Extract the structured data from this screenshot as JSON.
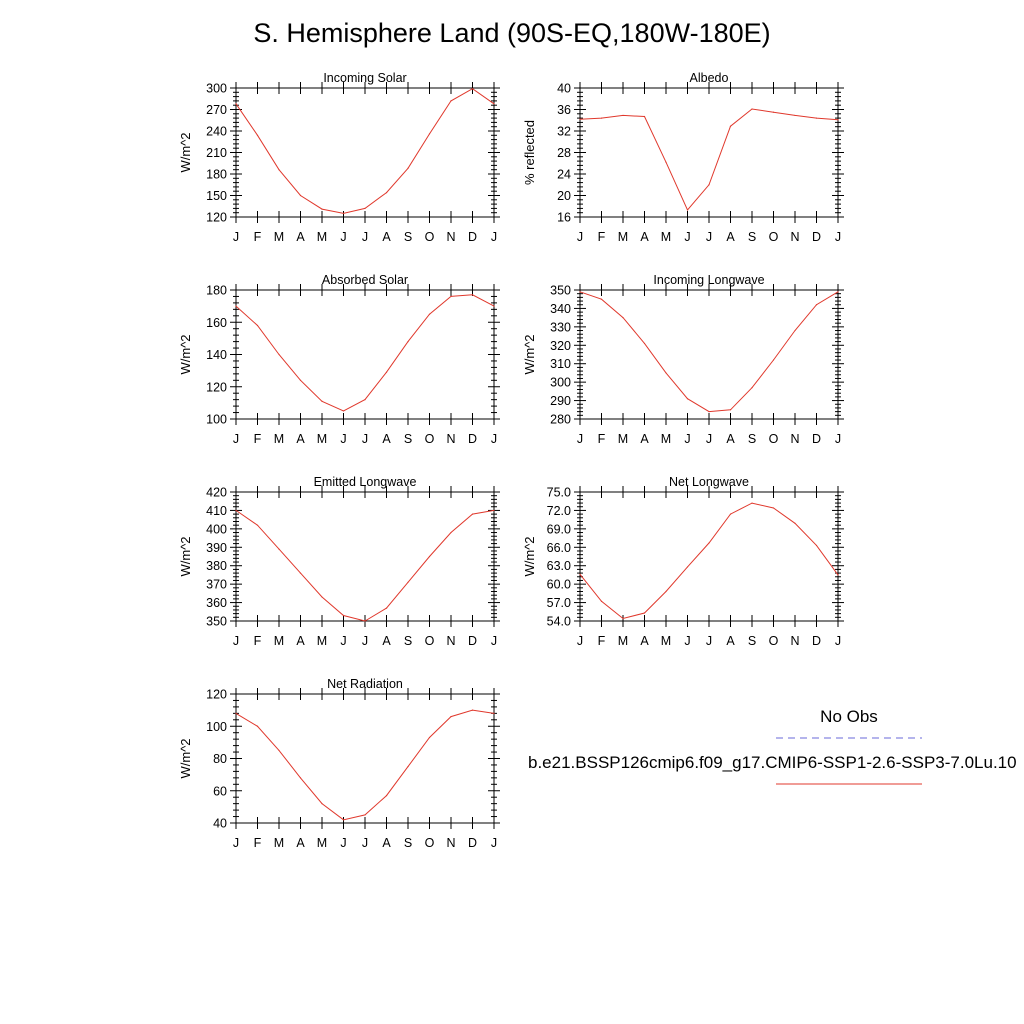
{
  "page": {
    "title": "S. Hemisphere Land (90S-EQ,180W-180E)"
  },
  "legend": {
    "obs_label": "No Obs",
    "case_label": "b.e21.BSSP126cmip6.f09_g17.CMIP6-SSP1-2.6-SSP3-7.0Lu.10",
    "obs_color": "#6a6ad8",
    "case_color": "#e0382c"
  },
  "months": [
    "J",
    "F",
    "M",
    "A",
    "M",
    "J",
    "J",
    "A",
    "S",
    "O",
    "N",
    "D",
    "J"
  ],
  "chart_data": [
    {
      "type": "line",
      "title": "Incoming Solar",
      "ylabel": "W/m^2",
      "ylim": [
        120,
        300
      ],
      "yticks": [
        120,
        150,
        180,
        210,
        240,
        270,
        300
      ],
      "ytick_labels": [
        "120",
        "150",
        "180",
        "210",
        "240",
        "270",
        "300"
      ],
      "categories": [
        "J",
        "F",
        "M",
        "A",
        "M",
        "J",
        "J",
        "A",
        "S",
        "O",
        "N",
        "D",
        "J"
      ],
      "series": [
        {
          "values": [
            278,
            234,
            186,
            150,
            131,
            125,
            132,
            154,
            188,
            236,
            282,
            299,
            278
          ],
          "color": "#e0382c"
        }
      ]
    },
    {
      "type": "line",
      "title": "Albedo",
      "ylabel": "% reflected",
      "ylim": [
        16,
        40
      ],
      "yticks": [
        16,
        20,
        24,
        28,
        32,
        36,
        40
      ],
      "ytick_labels": [
        "16",
        "20",
        "24",
        "28",
        "32",
        "36",
        "40"
      ],
      "categories": [
        "J",
        "F",
        "M",
        "A",
        "M",
        "J",
        "J",
        "A",
        "S",
        "O",
        "N",
        "D",
        "J"
      ],
      "series": [
        {
          "values": [
            34.2,
            34.4,
            34.9,
            34.7,
            26.2,
            17.3,
            22.0,
            32.9,
            36.1,
            35.5,
            34.9,
            34.4,
            34.1
          ],
          "color": "#e0382c"
        }
      ]
    },
    {
      "type": "line",
      "title": "Absorbed Solar",
      "ylabel": "W/m^2",
      "ylim": [
        100,
        180
      ],
      "yticks": [
        100,
        120,
        140,
        160,
        180
      ],
      "ytick_labels": [
        "100",
        "120",
        "140",
        "160",
        "180"
      ],
      "categories": [
        "J",
        "F",
        "M",
        "A",
        "M",
        "J",
        "J",
        "A",
        "S",
        "O",
        "N",
        "D",
        "J"
      ],
      "series": [
        {
          "values": [
            170,
            158,
            140,
            124,
            111,
            105,
            112,
            129,
            148,
            165,
            176,
            177,
            170
          ],
          "color": "#e0382c"
        }
      ]
    },
    {
      "type": "line",
      "title": "Incoming Longwave",
      "ylabel": "W/m^2",
      "ylim": [
        280,
        350
      ],
      "yticks": [
        280,
        290,
        300,
        310,
        320,
        330,
        340,
        350
      ],
      "ytick_labels": [
        "280",
        "290",
        "300",
        "310",
        "320",
        "330",
        "340",
        "350"
      ],
      "categories": [
        "J",
        "F",
        "M",
        "A",
        "M",
        "J",
        "J",
        "A",
        "S",
        "O",
        "N",
        "D",
        "J"
      ],
      "series": [
        {
          "values": [
            349,
            345,
            335,
            321,
            305,
            291,
            284,
            285,
            297,
            312,
            328,
            342,
            349
          ],
          "color": "#e0382c"
        }
      ]
    },
    {
      "type": "line",
      "title": "Emitted Longwave",
      "ylabel": "W/m^2",
      "ylim": [
        350,
        420
      ],
      "yticks": [
        350,
        360,
        370,
        380,
        390,
        400,
        410,
        420
      ],
      "ytick_labels": [
        "350",
        "360",
        "370",
        "380",
        "390",
        "400",
        "410",
        "420"
      ],
      "categories": [
        "J",
        "F",
        "M",
        "A",
        "M",
        "J",
        "J",
        "A",
        "S",
        "O",
        "N",
        "D",
        "J"
      ],
      "series": [
        {
          "values": [
            410,
            402,
            389,
            376,
            363,
            353,
            350,
            357,
            371,
            385,
            398,
            408,
            410
          ],
          "color": "#e0382c"
        }
      ]
    },
    {
      "type": "line",
      "title": "Net Longwave",
      "ylabel": "W/m^2",
      "ylim": [
        54,
        75
      ],
      "yticks": [
        54,
        57,
        60,
        63,
        66,
        69,
        72,
        75
      ],
      "ytick_labels": [
        "54.0",
        "57.0",
        "60.0",
        "63.0",
        "66.0",
        "69.0",
        "72.0",
        "75.0"
      ],
      "categories": [
        "J",
        "F",
        "M",
        "A",
        "M",
        "J",
        "J",
        "A",
        "S",
        "O",
        "N",
        "D",
        "J"
      ],
      "series": [
        {
          "values": [
            61.6,
            57.2,
            54.4,
            55.3,
            58.8,
            62.8,
            66.7,
            71.4,
            73.2,
            72.4,
            69.9,
            66.3,
            61.5
          ],
          "color": "#e0382c"
        }
      ]
    },
    {
      "type": "line",
      "title": "Net Radiation",
      "ylabel": "W/m^2",
      "ylim": [
        40,
        120
      ],
      "yticks": [
        40,
        60,
        80,
        100,
        120
      ],
      "ytick_labels": [
        "40",
        "60",
        "80",
        "100",
        "120"
      ],
      "categories": [
        "J",
        "F",
        "M",
        "A",
        "M",
        "J",
        "J",
        "A",
        "S",
        "O",
        "N",
        "D",
        "J"
      ],
      "series": [
        {
          "values": [
            108,
            100,
            85,
            68,
            52,
            42,
            45,
            57,
            75,
            93,
            106,
            110,
            108
          ],
          "color": "#e0382c"
        }
      ]
    }
  ]
}
